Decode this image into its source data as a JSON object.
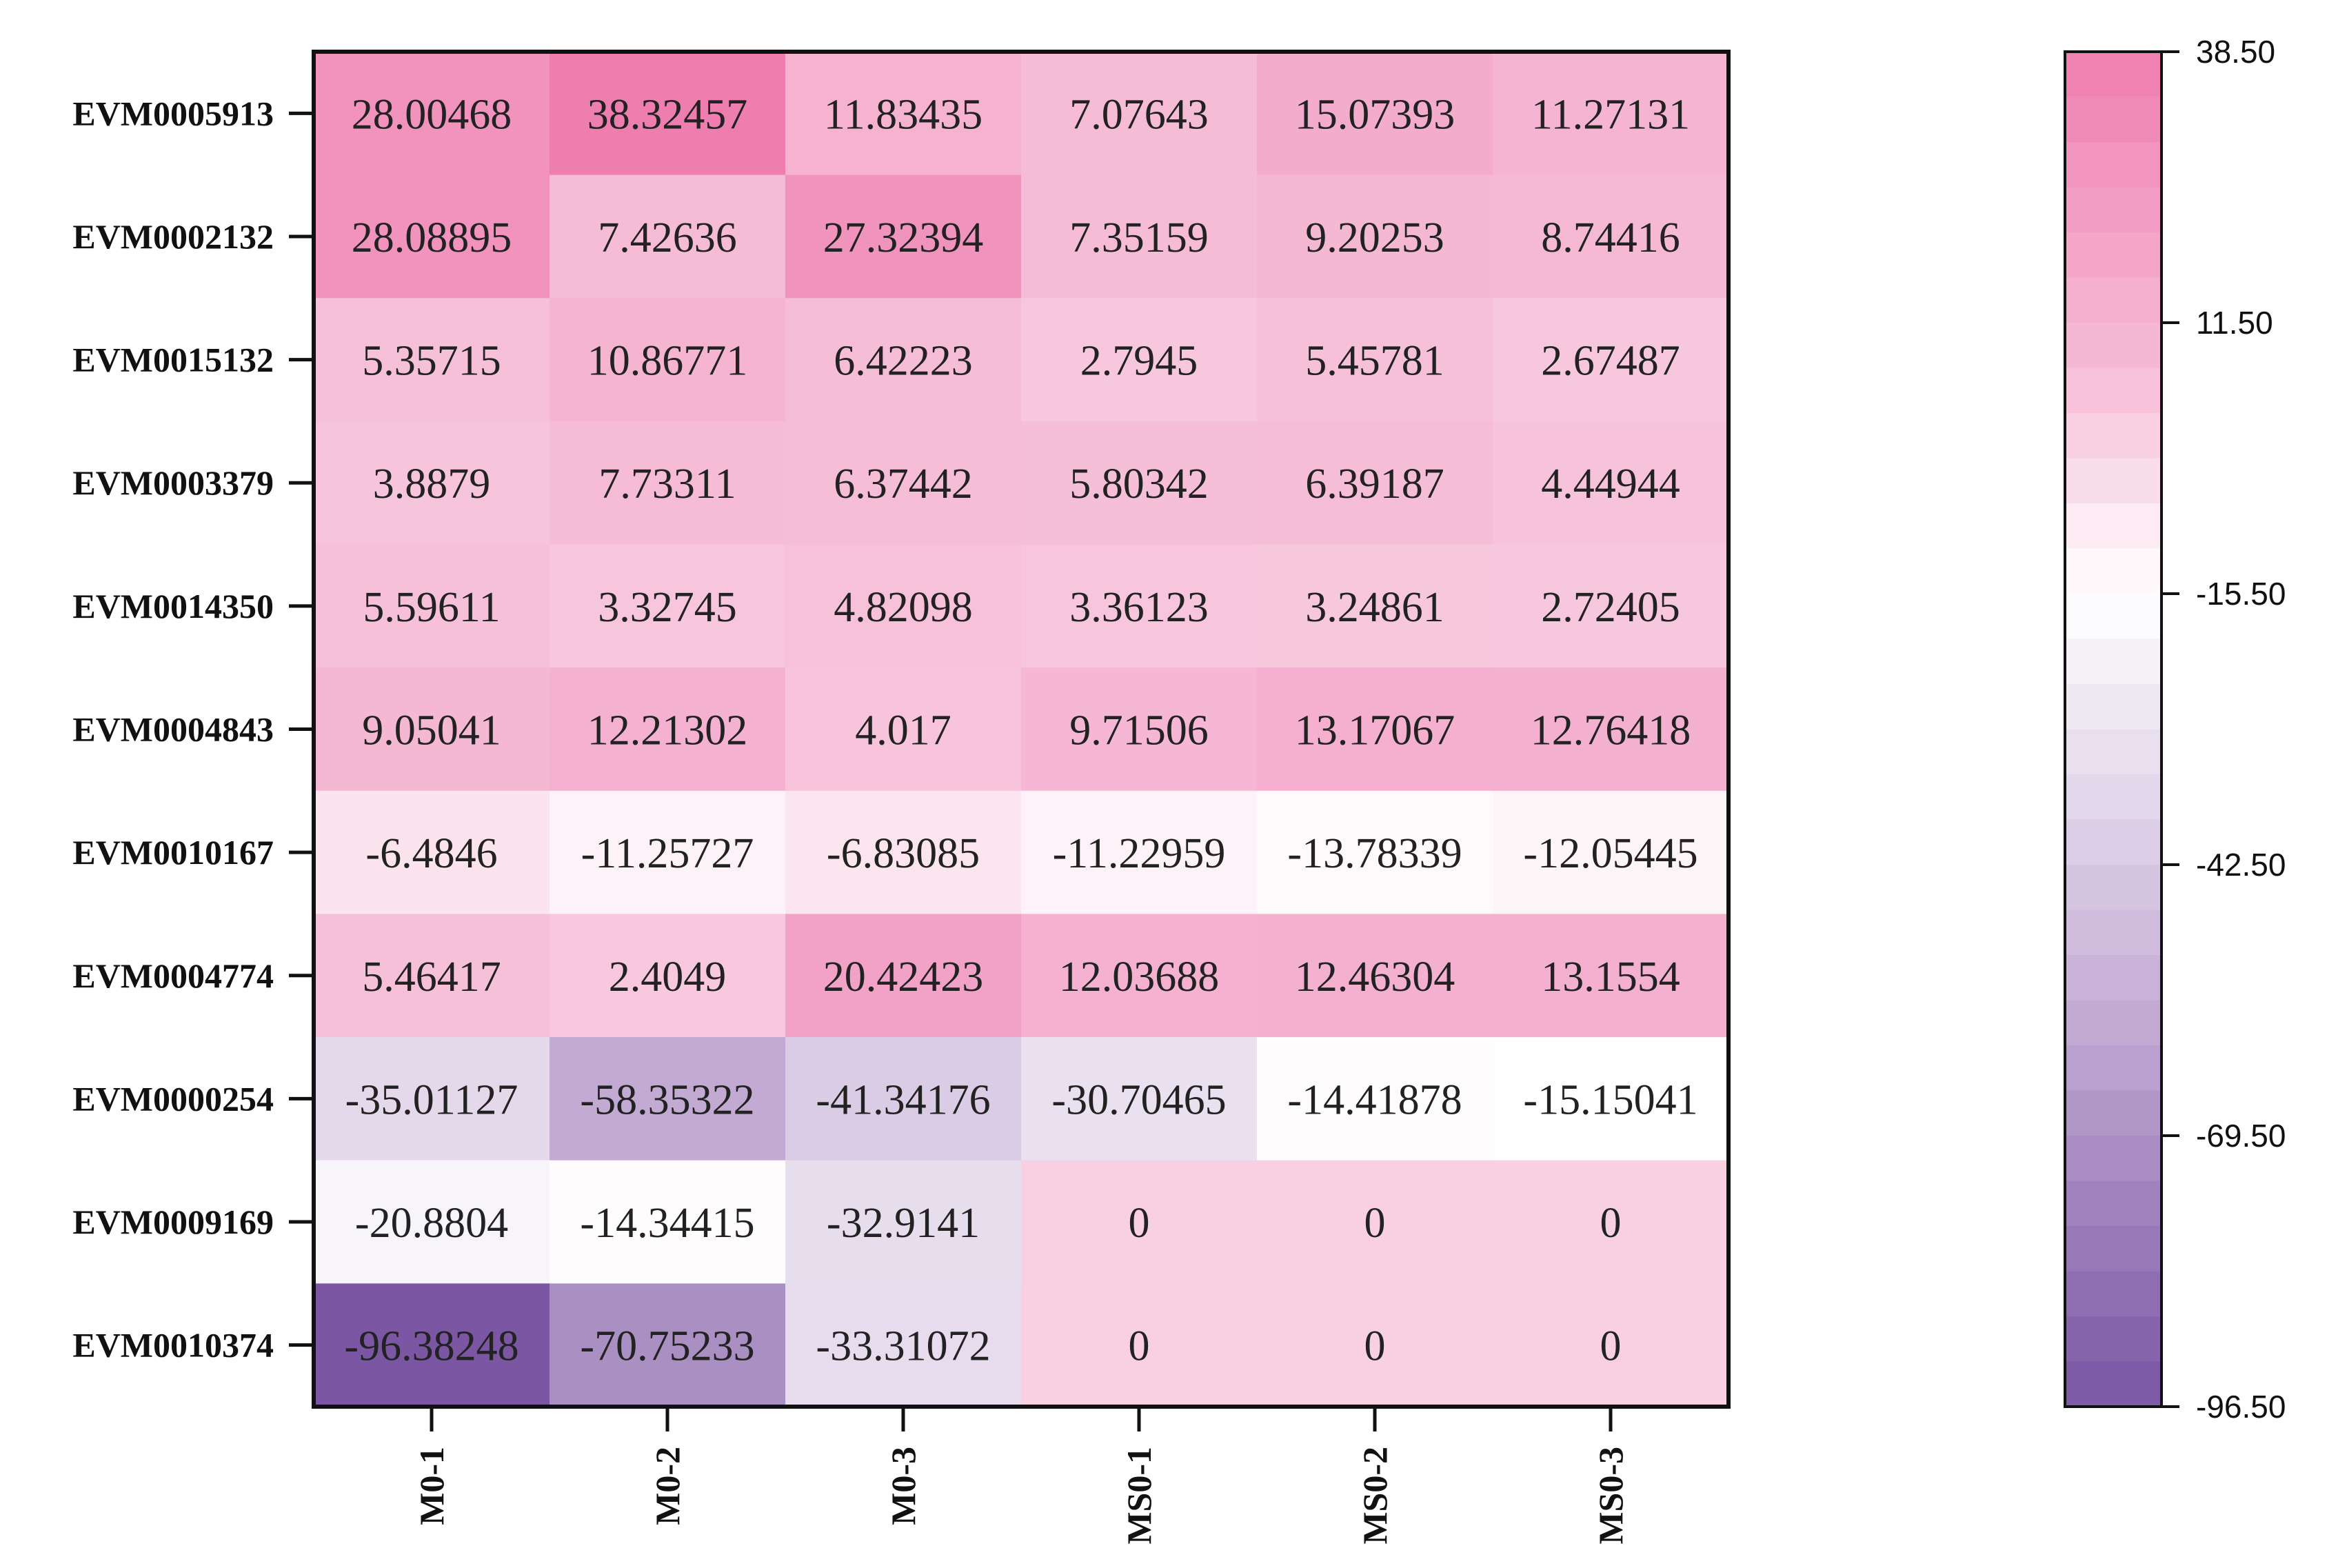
{
  "chart_data": {
    "type": "heatmap",
    "title": "",
    "xlabel": "",
    "ylabel": "",
    "columns": [
      "M0-1",
      "M0-2",
      "M0-3",
      "MS0-1",
      "MS0-2",
      "MS0-3"
    ],
    "rows": [
      "EVM0005913",
      "EVM0002132",
      "EVM0015132",
      "EVM0003379",
      "EVM0014350",
      "EVM0004843",
      "EVM0010167",
      "EVM0004774",
      "EVM0000254",
      "EVM0009169",
      "EVM0010374"
    ],
    "values": [
      [
        "28.00468",
        "38.32457",
        "11.83435",
        "7.07643",
        "15.07393",
        "11.27131"
      ],
      [
        "28.08895",
        "7.42636",
        "27.32394",
        "7.35159",
        "9.20253",
        "8.74416"
      ],
      [
        "5.35715",
        "10.86771",
        "6.42223",
        "2.7945",
        "5.45781",
        "2.67487"
      ],
      [
        "3.8879",
        "7.73311",
        "6.37442",
        "5.80342",
        "6.39187",
        "4.44944"
      ],
      [
        "5.59611",
        "3.32745",
        "4.82098",
        "3.36123",
        "3.24861",
        "2.72405"
      ],
      [
        "9.05041",
        "12.21302",
        "4.017",
        "9.71506",
        "13.17067",
        "12.76418"
      ],
      [
        "-6.4846",
        "-11.25727",
        "-6.83085",
        "-11.22959",
        "-13.78339",
        "-12.05445"
      ],
      [
        "5.46417",
        "2.4049",
        "20.42423",
        "12.03688",
        "12.46304",
        "13.1554"
      ],
      [
        "-35.01127",
        "-58.35322",
        "-41.34176",
        "-30.70465",
        "-14.41878",
        "-15.15041"
      ],
      [
        "-20.8804",
        "-14.34415",
        "-32.9141",
        "0",
        "0",
        "0"
      ],
      [
        "-96.38248",
        "-70.75233",
        "-33.31072",
        "0",
        "0",
        "0"
      ]
    ],
    "colorbar": {
      "min": -96.5,
      "max": 38.5,
      "ticks": [
        "38.50",
        "11.50",
        "-15.50",
        "-42.50",
        "-69.50",
        "-96.50"
      ],
      "tick_values": [
        38.5,
        11.5,
        -15.5,
        -42.5,
        -69.5,
        -96.5
      ],
      "steps": 30,
      "colors": {
        "high": "#ee7eb0",
        "mid_pink": "#f6bed7",
        "white": "#ffffff",
        "mid_purple": "#c6afd6",
        "low": "#7a56a3"
      }
    }
  }
}
